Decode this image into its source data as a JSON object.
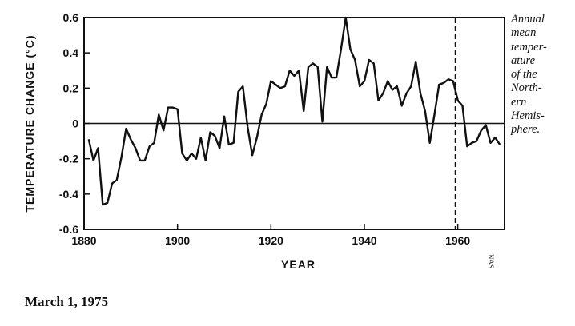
{
  "chart_data": {
    "type": "line",
    "xlabel": "YEAR",
    "ylabel": "TEMPERATURE CHANGE (°C)",
    "xlim": [
      1880,
      1970
    ],
    "ylim": [
      -0.6,
      0.6
    ],
    "x_ticks": [
      1880,
      1900,
      1920,
      1940,
      1960
    ],
    "y_ticks": [
      {
        "value": 0.6,
        "label": "0.6"
      },
      {
        "value": 0.4,
        "label": "0.4"
      },
      {
        "value": 0.2,
        "label": "0.2"
      },
      {
        "value": 0.0,
        "label": "0"
      },
      {
        "value": -0.2,
        "label": "-0.2"
      },
      {
        "value": -0.4,
        "label": "-0.4"
      },
      {
        "value": -0.6,
        "label": "-0.6"
      }
    ],
    "zero_line": 0,
    "reference_line": {
      "x": 1959.5,
      "style": "dashed"
    },
    "grid": false,
    "series": [
      {
        "x": [
          1881,
          1882,
          1883,
          1884,
          1885,
          1886,
          1887,
          1888,
          1889,
          1890,
          1891,
          1892,
          1893,
          1894,
          1895,
          1896,
          1897,
          1898,
          1899,
          1900,
          1901,
          1902,
          1903,
          1904,
          1905,
          1906,
          1907,
          1908,
          1909,
          1910,
          1911,
          1912,
          1913,
          1914,
          1915,
          1916,
          1917,
          1918,
          1919,
          1920,
          1921,
          1922,
          1923,
          1924,
          1925,
          1926,
          1927,
          1928,
          1929,
          1930,
          1931,
          1932,
          1933,
          1934,
          1935,
          1936,
          1937,
          1938,
          1939,
          1940,
          1941,
          1942,
          1943,
          1944,
          1945,
          1946,
          1947,
          1948,
          1949,
          1950,
          1951,
          1952,
          1953,
          1954,
          1955,
          1956,
          1957,
          1958,
          1959,
          1960,
          1961,
          1962,
          1963,
          1964,
          1965,
          1966,
          1967,
          1968,
          1969
        ],
        "y": [
          -0.09,
          -0.21,
          -0.14,
          -0.46,
          -0.45,
          -0.34,
          -0.32,
          -0.19,
          -0.03,
          -0.09,
          -0.14,
          -0.21,
          -0.21,
          -0.13,
          -0.11,
          0.05,
          -0.04,
          0.09,
          0.09,
          0.08,
          -0.17,
          -0.21,
          -0.17,
          -0.2,
          -0.08,
          -0.21,
          -0.05,
          -0.07,
          -0.14,
          0.04,
          -0.12,
          -0.11,
          0.18,
          0.21,
          -0.02,
          -0.18,
          -0.08,
          0.05,
          0.11,
          0.24,
          0.22,
          0.2,
          0.21,
          0.3,
          0.27,
          0.3,
          0.07,
          0.32,
          0.34,
          0.32,
          0.01,
          0.32,
          0.26,
          0.26,
          0.42,
          0.6,
          0.42,
          0.36,
          0.21,
          0.24,
          0.36,
          0.34,
          0.13,
          0.17,
          0.24,
          0.19,
          0.21,
          0.1,
          0.17,
          0.21,
          0.35,
          0.17,
          0.07,
          -0.11,
          0.05,
          0.22,
          0.23,
          0.25,
          0.24,
          0.13,
          0.1,
          -0.13,
          -0.11,
          -0.1,
          -0.04,
          -0.01,
          -0.11,
          -0.08,
          -0.12
        ]
      }
    ]
  },
  "caption": {
    "lines": [
      "Annual",
      "mean",
      "temper-",
      "ature",
      "of the",
      "North-",
      "ern",
      "Hemis-",
      "phere."
    ]
  },
  "date": "March 1, 1975",
  "side_mark": "NAS"
}
